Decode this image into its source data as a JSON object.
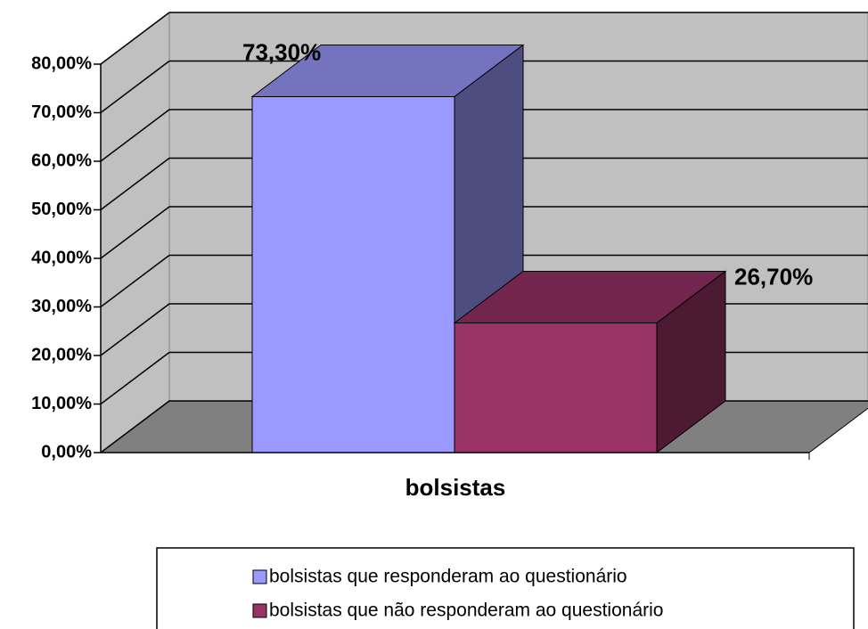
{
  "chart_data": {
    "type": "bar3d",
    "categories": [
      "bolsistas"
    ],
    "series": [
      {
        "name": "bolsistas que responderam ao questionário",
        "color": "#9999ff",
        "values": [
          73.3
        ],
        "value_labels": [
          "73,30%"
        ]
      },
      {
        "name": "bolsistas que não responderam ao questionário",
        "color": "#993366",
        "values": [
          26.7
        ],
        "value_labels": [
          "26,70%"
        ]
      }
    ],
    "ylim": [
      0,
      80
    ],
    "yticks": [
      {
        "value": 0,
        "label": "0,00%"
      },
      {
        "value": 10,
        "label": "10,00%"
      },
      {
        "value": 20,
        "label": "20,00%"
      },
      {
        "value": 30,
        "label": "30,00%"
      },
      {
        "value": 40,
        "label": "40,00%"
      },
      {
        "value": 50,
        "label": "50,00%"
      },
      {
        "value": 60,
        "label": "60,00%"
      },
      {
        "value": 70,
        "label": "70,00%"
      },
      {
        "value": 80,
        "label": "80,00%"
      }
    ],
    "grid": true,
    "legend": "bottom"
  }
}
